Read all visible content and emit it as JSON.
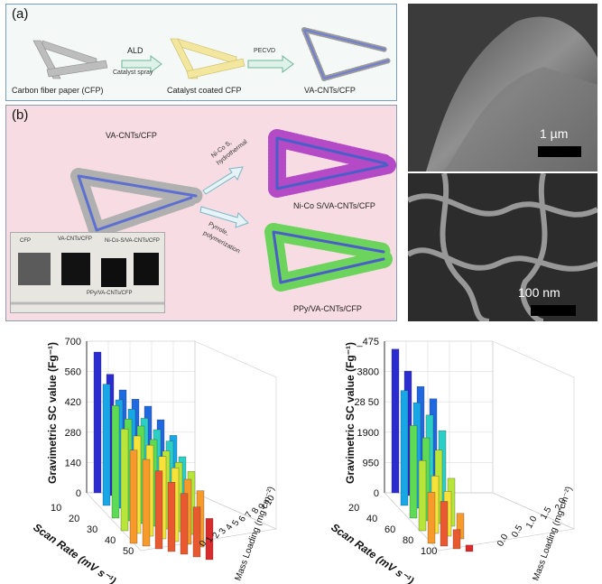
{
  "panel_a": {
    "tag": "(a)",
    "label_cfp": "Carbon fiber paper (CFP)",
    "arrow1_top": "ALD",
    "arrow1_bottom": "Catalyst spray",
    "label_coated": "Catalyst coated CFP",
    "arrow2_top": "PECVD",
    "label_vacnt": "VA-CNTs/CFP"
  },
  "panel_b": {
    "tag": "(b)",
    "label_vacnt": "VA-CNTs/CFP",
    "arrow_up_line1": "Ni-Co S,",
    "arrow_up_line2": "hydrothermal",
    "arrow_down_line1": "Pyrrole,",
    "arrow_down_line2": "polymerization",
    "label_nicos": "Ni-Co S/VA-CNTs/CFP",
    "label_ppy": "PPy/VA-CNTs/CFP",
    "photo_labels": [
      "CFP",
      "VA-CNTs/CFP",
      "Ni-Co-S/VA-CNTs/CFP",
      "PPy/VA-CNTs/CFP"
    ]
  },
  "sem": {
    "top_scale": "1 µm",
    "bottom_scale": "100 nm"
  },
  "colors": {
    "blue_fiber": "#6f7fd6",
    "purple_tube": "#b24fc7",
    "green_tube": "#69c95a",
    "grey_fiber": "#bcbcbc",
    "yellow_fiber": "#f2e7a2"
  },
  "chart_data": [
    {
      "type": "bar",
      "ylabel": "Gravimetric SC value (Fg⁻¹)",
      "xlabel": "Scan Rate (mV s⁻¹)",
      "zlabel": "Mass Loading (mg cm⁻²)",
      "yticks": [
        "700",
        "560",
        "420",
        "280",
        "140",
        "0"
      ],
      "xticks": [
        "10",
        "20",
        "30",
        "40",
        "50"
      ],
      "zticks": [
        "0",
        "1",
        "2",
        "3",
        "4",
        "5",
        "6",
        "7",
        "8",
        "9",
        "10"
      ],
      "ylim": [
        0,
        700
      ],
      "series": [
        {
          "x": 10,
          "values": [
            650,
            560,
            500,
            470,
            450,
            400,
            340
          ]
        },
        {
          "x": 20,
          "values": [
            560,
            500,
            470,
            440,
            400,
            360,
            300
          ]
        },
        {
          "x": 30,
          "values": [
            520,
            470,
            450,
            400,
            360,
            320,
            290
          ]
        },
        {
          "x": 40,
          "values": [
            470,
            450,
            420,
            380,
            340,
            300,
            260
          ]
        },
        {
          "x": 50,
          "values": [
            430,
            400,
            360,
            320,
            280,
            230,
            190
          ]
        }
      ]
    },
    {
      "type": "bar",
      "ylabel": "Gravimetric SC value (Fg⁻¹)",
      "xlabel": "Scan Rate (mV s⁻¹)",
      "zlabel": "Mass Loading (mg cm⁻²)",
      "yticks": [
        "_475",
        "3800",
        "28 50",
        "1900",
        "950",
        "0"
      ],
      "xticks": [
        "20",
        "40",
        "60",
        "80",
        "100"
      ],
      "zticks": [
        "0.0",
        "0.5",
        "1.0",
        "1.5",
        "2.0"
      ],
      "ylim": [
        0,
        4750
      ],
      "series": [
        {
          "x": 20,
          "values": [
            4500,
            3900,
            3500,
            3200
          ]
        },
        {
          "x": 40,
          "values": [
            3600,
            3300,
            3000,
            2600
          ]
        },
        {
          "x": 60,
          "values": [
            2900,
            2600,
            2300,
            1500
          ]
        },
        {
          "x": 80,
          "values": [
            2200,
            1800,
            1400,
            800
          ]
        },
        {
          "x": 100,
          "values": [
            1600,
            1400,
            600,
            200
          ]
        }
      ]
    }
  ]
}
